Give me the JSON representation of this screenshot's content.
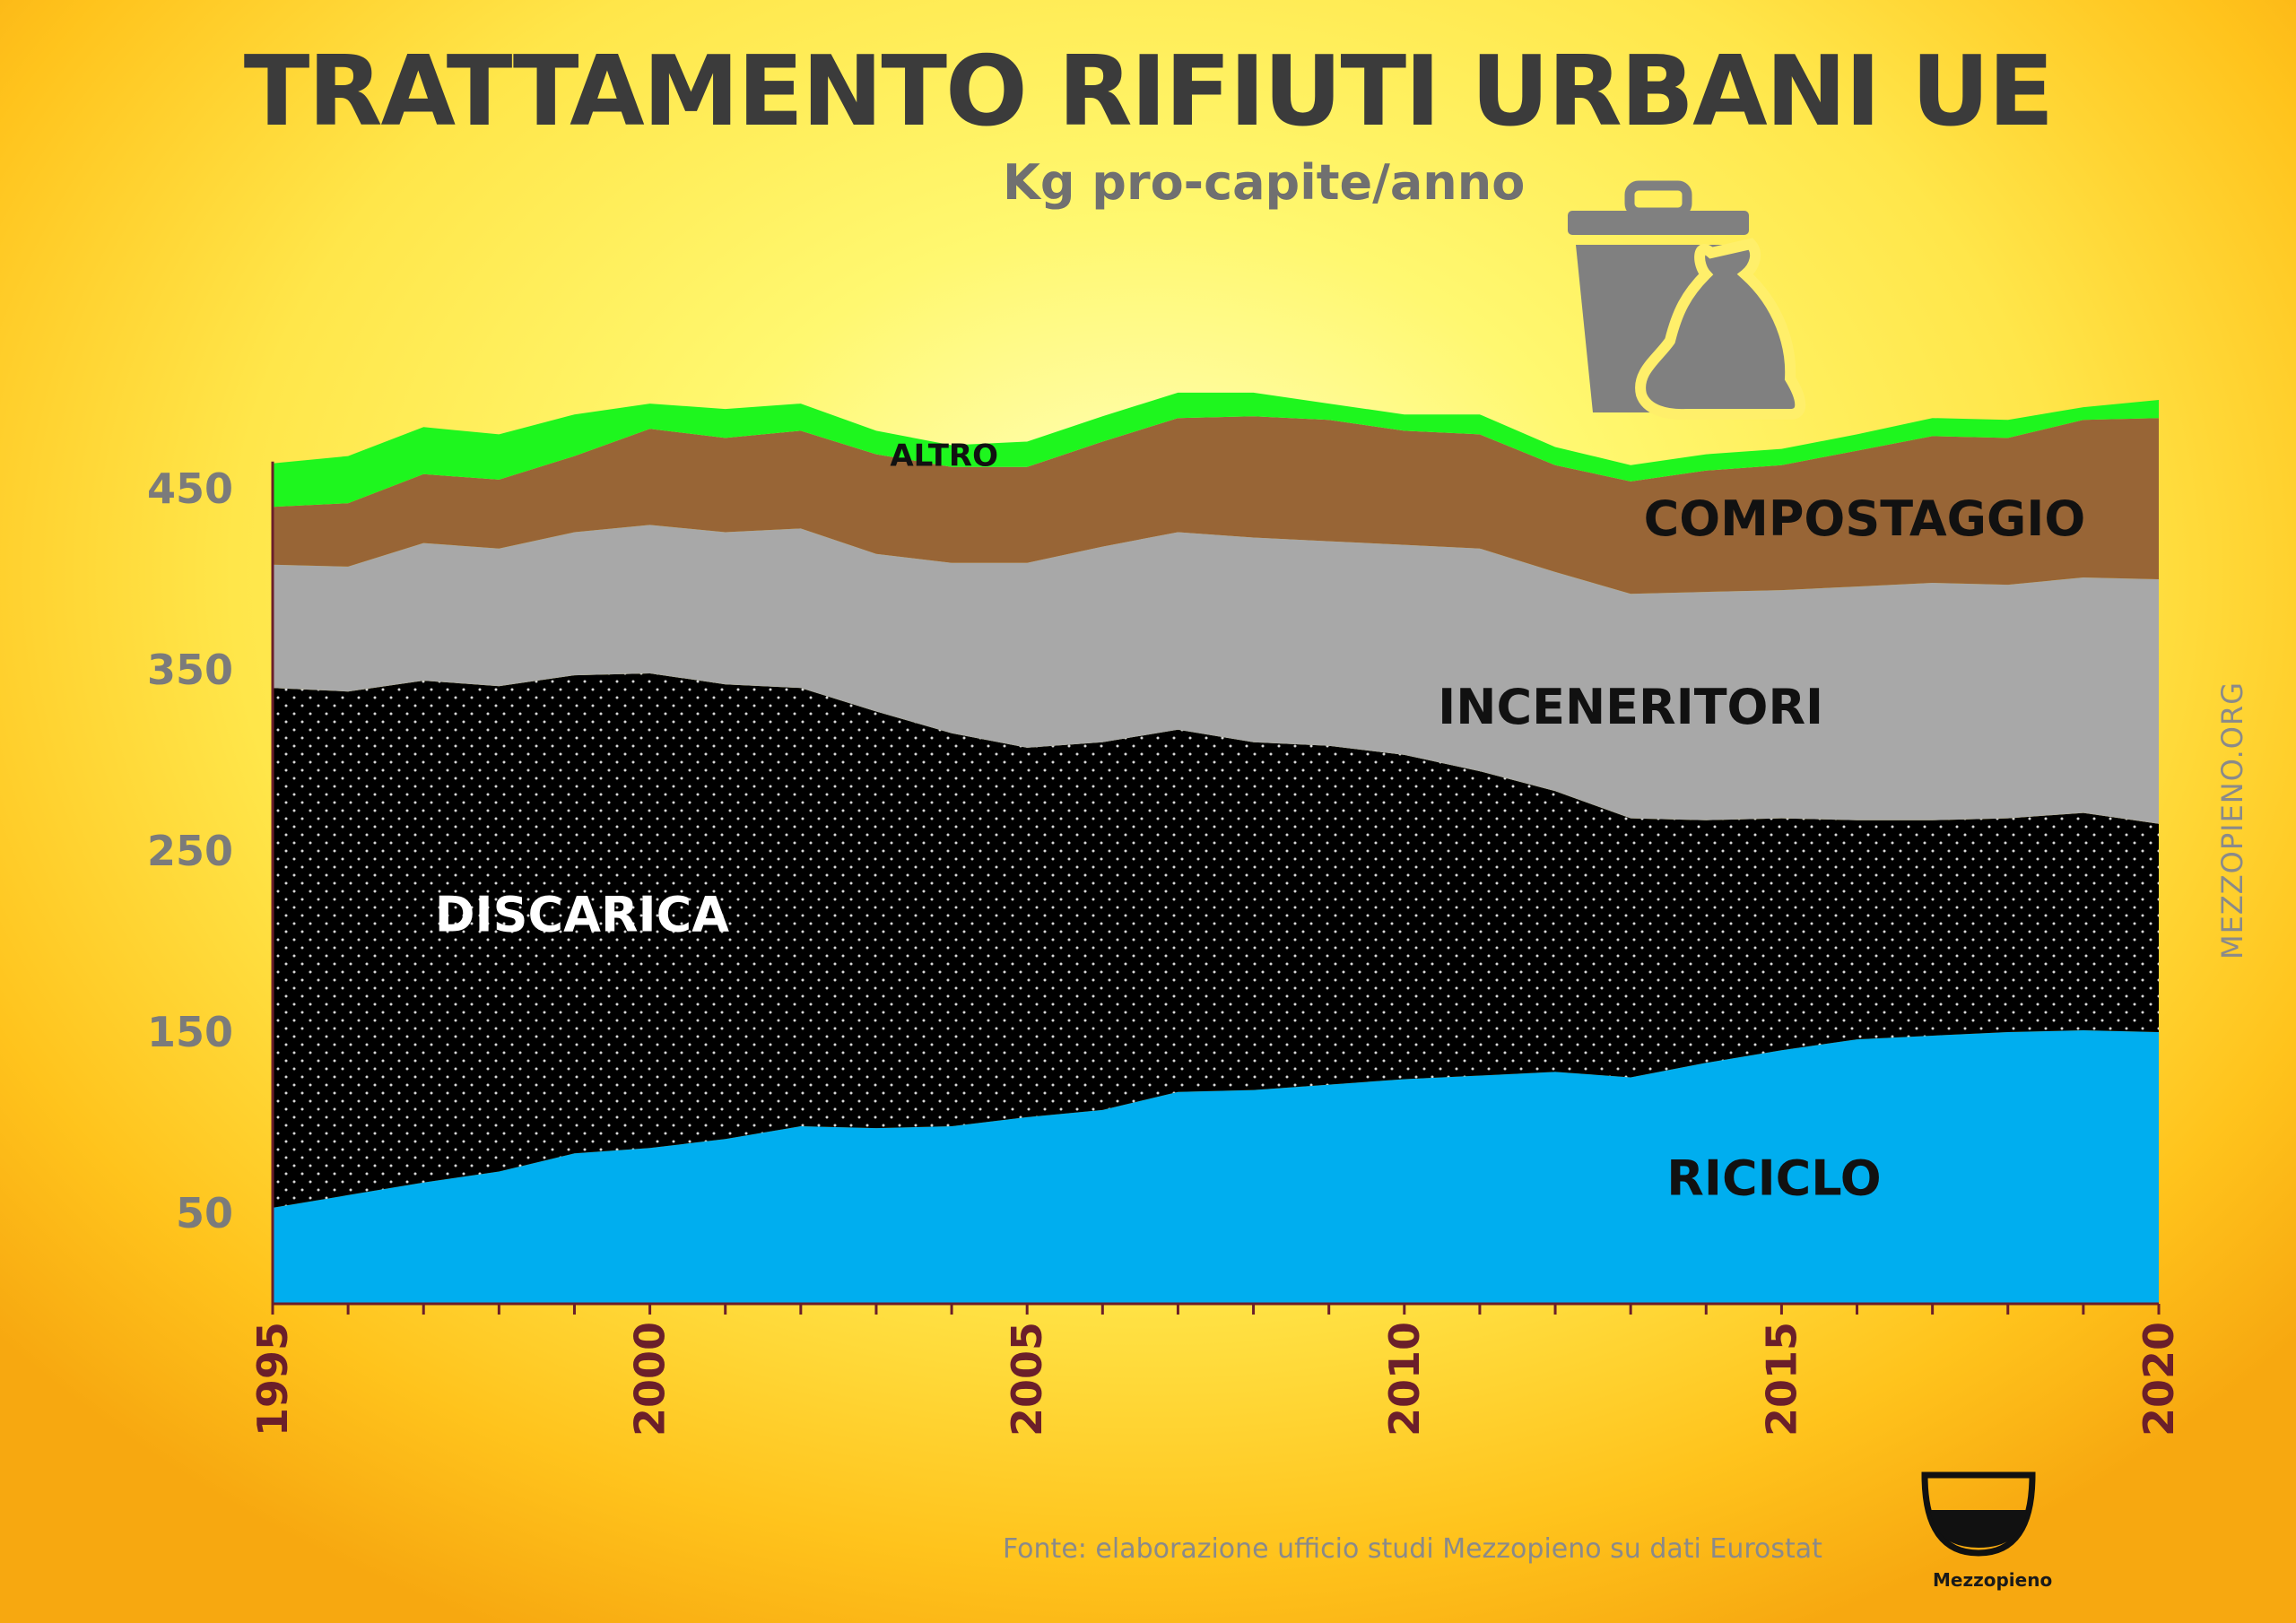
{
  "header": {
    "title": "TRATTAMENTO RIFIUTI URBANI UE",
    "subtitle": "Kg pro-capite/anno"
  },
  "footer": {
    "source": "Fonte: elaborazione ufficio studi Mezzopieno su dati Eurostat",
    "site": "MEZZOPIENO.ORG",
    "logo_text": "Mezzopieno"
  },
  "icons": [
    "trash-bin-icon",
    "garbage-bag-icon",
    "half-full-glass-logo-icon"
  ],
  "colors": {
    "riciclo": "#00aeef",
    "discarica": "#000000",
    "inceneritori": "#a8a8a8",
    "compostaggio": "#986536",
    "altro": "#1ef61e"
  },
  "chart_data": {
    "type": "area",
    "stacked": true,
    "x": [
      1995,
      1996,
      1997,
      1998,
      1999,
      2000,
      2001,
      2002,
      2003,
      2004,
      2005,
      2006,
      2007,
      2008,
      2009,
      2010,
      2011,
      2012,
      2013,
      2014,
      2015,
      2016,
      2017,
      2018,
      2019,
      2020
    ],
    "series": [
      {
        "name": "RICICLO",
        "values": [
          53,
          60,
          67,
          73,
          83,
          86,
          91,
          98,
          97,
          98,
          103,
          107,
          117,
          118,
          121,
          124,
          126,
          128,
          125,
          133,
          140,
          146,
          148,
          150,
          151,
          150
        ]
      },
      {
        "name": "DISCARICA",
        "values": [
          287,
          278,
          277,
          268,
          264,
          262,
          251,
          242,
          230,
          217,
          204,
          203,
          200,
          192,
          187,
          179,
          168,
          155,
          143,
          134,
          128,
          121,
          119,
          118,
          120,
          115
        ]
      },
      {
        "name": "INCENERITORI",
        "values": [
          68,
          69,
          76,
          76,
          79,
          82,
          84,
          88,
          87,
          94,
          102,
          108,
          109,
          113,
          113,
          116,
          123,
          121,
          124,
          126,
          126,
          129,
          131,
          129,
          130,
          135
        ]
      },
      {
        "name": "COMPOSTAGGIO",
        "values": [
          32,
          35,
          38,
          38,
          42,
          53,
          52,
          54,
          55,
          53,
          53,
          58,
          63,
          67,
          67,
          63,
          63,
          59,
          62,
          67,
          69,
          75,
          81,
          81,
          87,
          89
        ]
      },
      {
        "name": "ALTRO",
        "values": [
          24,
          26,
          26,
          25,
          23,
          14,
          16,
          15,
          13,
          12,
          14,
          14,
          14,
          13,
          9,
          9,
          11,
          10,
          9,
          9,
          9,
          9,
          10,
          10,
          7,
          10
        ]
      }
    ],
    "ylim": [
      0,
      500
    ],
    "yticks": [
      50,
      150,
      250,
      350,
      450
    ],
    "xticks": [
      1995,
      2000,
      2005,
      2010,
      2015,
      2020
    ],
    "grid": false,
    "legend": "none"
  }
}
